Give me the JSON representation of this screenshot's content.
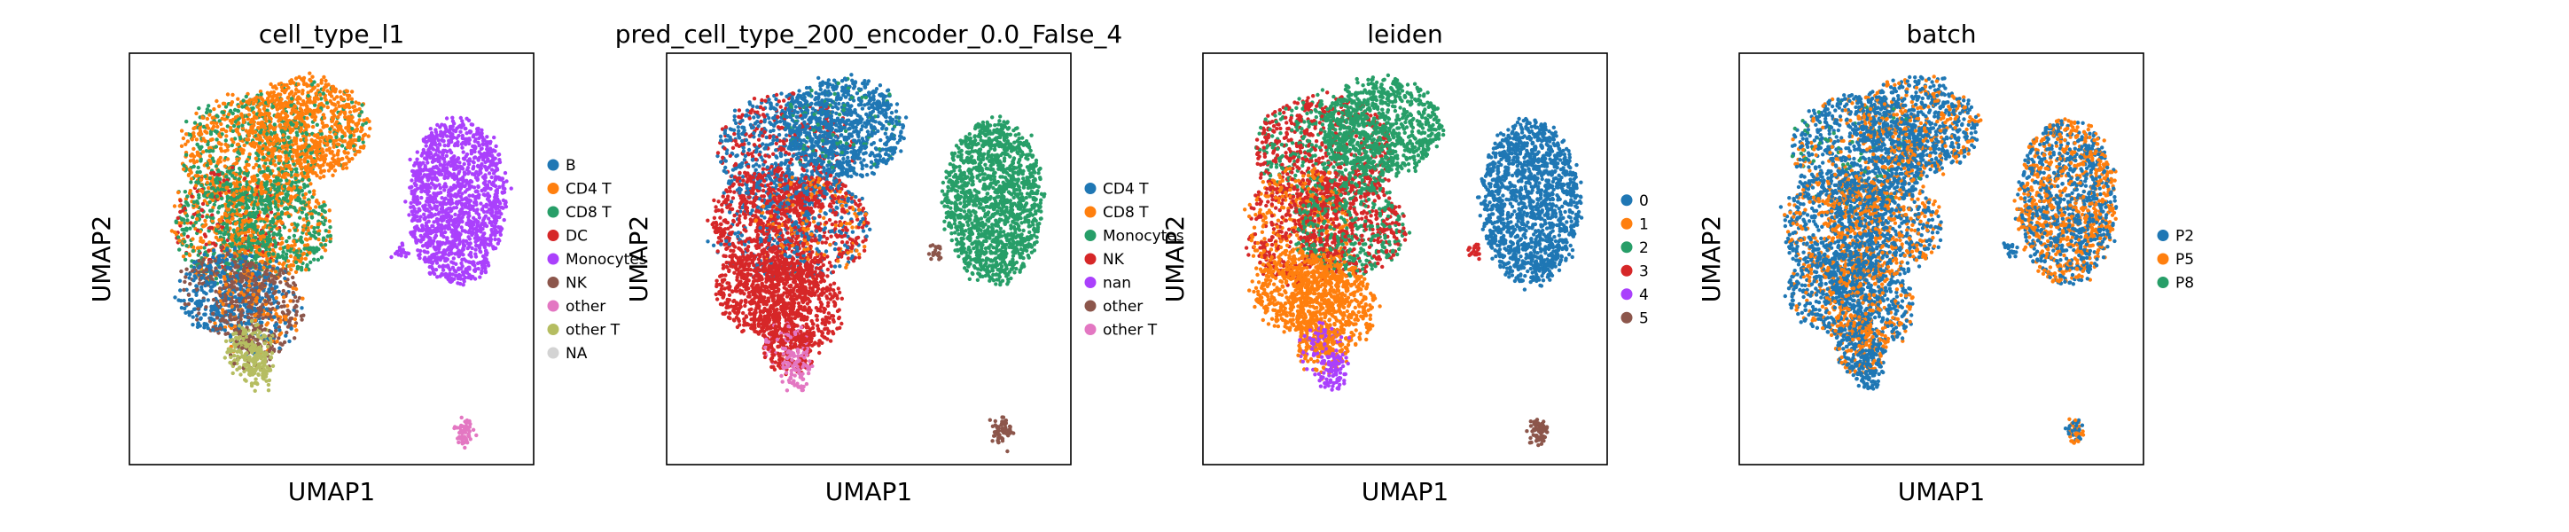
{
  "chart_data": [
    {
      "type": "scatter",
      "title": "cell_type_l1",
      "xlabel": "UMAP1",
      "ylabel": "UMAP2",
      "legend_position": "right",
      "legend": [
        {
          "label": "B",
          "color": "#1f77b4"
        },
        {
          "label": "CD4 T",
          "color": "#ff7f0e"
        },
        {
          "label": "CD8 T",
          "color": "#279e68"
        },
        {
          "label": "DC",
          "color": "#d62728"
        },
        {
          "label": "Monocytes",
          "color": "#aa40fc"
        },
        {
          "label": "NK",
          "color": "#8c564b"
        },
        {
          "label": "other",
          "color": "#e377c2"
        },
        {
          "label": "other T",
          "color": "#b5bd61"
        },
        {
          "label": "NA",
          "color": "#d3d3d3"
        }
      ]
    },
    {
      "type": "scatter",
      "title": "pred_cell_type_200_encoder_0.0_False_4",
      "xlabel": "UMAP1",
      "ylabel": "UMAP2",
      "legend_position": "right",
      "legend": [
        {
          "label": "CD4 T",
          "color": "#1f77b4"
        },
        {
          "label": "CD8 T",
          "color": "#ff7f0e"
        },
        {
          "label": "Monocytes",
          "color": "#279e68"
        },
        {
          "label": "NK",
          "color": "#d62728"
        },
        {
          "label": "nan",
          "color": "#aa40fc"
        },
        {
          "label": "other",
          "color": "#8c564b"
        },
        {
          "label": "other T",
          "color": "#e377c2"
        }
      ]
    },
    {
      "type": "scatter",
      "title": "leiden",
      "xlabel": "UMAP1",
      "ylabel": "UMAP2",
      "legend_position": "right",
      "legend": [
        {
          "label": "0",
          "color": "#1f77b4"
        },
        {
          "label": "1",
          "color": "#ff7f0e"
        },
        {
          "label": "2",
          "color": "#279e68"
        },
        {
          "label": "3",
          "color": "#d62728"
        },
        {
          "label": "4",
          "color": "#aa40fc"
        },
        {
          "label": "5",
          "color": "#8c564b"
        }
      ]
    },
    {
      "type": "scatter",
      "title": "batch",
      "xlabel": "UMAP1",
      "ylabel": "UMAP2",
      "legend_position": "right",
      "legend": [
        {
          "label": "P2",
          "color": "#1f77b4"
        },
        {
          "label": "P5",
          "color": "#ff7f0e"
        },
        {
          "label": "P8",
          "color": "#279e68"
        }
      ]
    }
  ]
}
